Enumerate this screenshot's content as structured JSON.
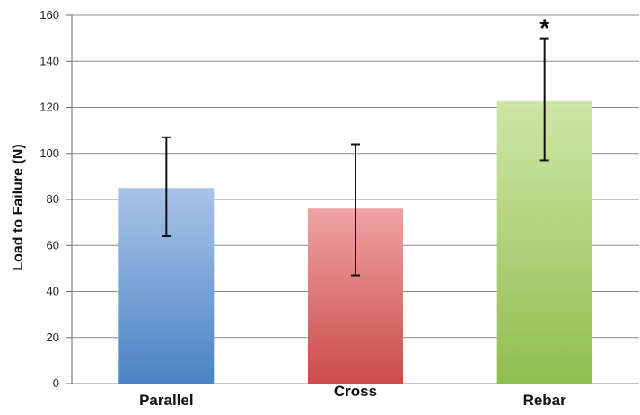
{
  "chart_data": {
    "type": "bar",
    "ylabel": "Load to Failure (N)",
    "ylim": [
      0,
      160
    ],
    "yticks": [
      0,
      20,
      40,
      60,
      80,
      100,
      120,
      140,
      160
    ],
    "grid": true,
    "categories": [
      "Parallel",
      "Cross",
      "Rebar"
    ],
    "values": [
      85,
      76,
      123
    ],
    "errors": [
      {
        "low": 64,
        "high": 107
      },
      {
        "low": 47,
        "high": 104
      },
      {
        "low": 97,
        "high": 150
      }
    ],
    "colors": [
      "#5b8fcf",
      "#d96666",
      "#a6cc6a"
    ],
    "annotations": [
      {
        "category": "Rebar",
        "text": "*"
      }
    ]
  }
}
